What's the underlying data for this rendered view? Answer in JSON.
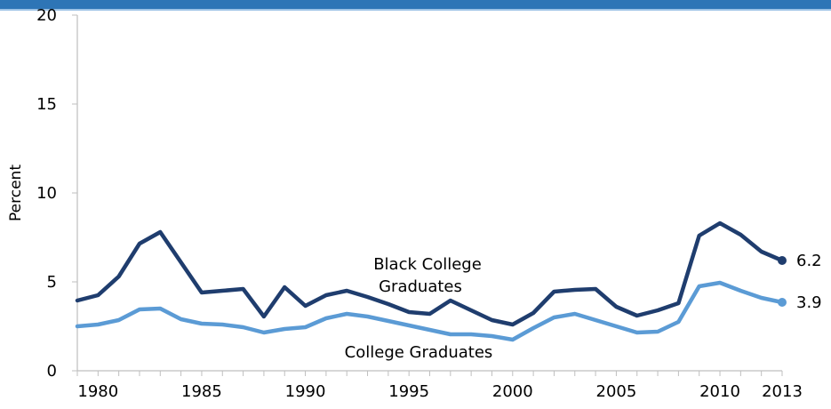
{
  "chart_data": {
    "type": "line",
    "title": "",
    "xlabel": "",
    "ylabel": "Percent",
    "ylim": [
      0,
      20
    ],
    "yticks": [
      "0",
      "5",
      "10",
      "15",
      "20"
    ],
    "xticks": [
      "1980",
      "1985",
      "1990",
      "1995",
      "2000",
      "2005",
      "2010",
      "2013"
    ],
    "x": [
      1979,
      1980,
      1981,
      1982,
      1983,
      1984,
      1985,
      1986,
      1987,
      1988,
      1989,
      1990,
      1991,
      1992,
      1993,
      1994,
      1995,
      1996,
      1997,
      1998,
      1999,
      2000,
      2001,
      2002,
      2003,
      2004,
      2005,
      2006,
      2007,
      2008,
      2009,
      2010,
      2011,
      2012,
      2013
    ],
    "series": [
      {
        "name": "Black College Graduates",
        "color": "#1f3d6e",
        "end_label": "6.2",
        "values": [
          3.95,
          4.25,
          5.3,
          7.15,
          7.8,
          6.1,
          4.4,
          4.5,
          4.6,
          3.05,
          4.7,
          3.65,
          4.25,
          4.5,
          4.15,
          3.75,
          3.3,
          3.2,
          3.95,
          3.4,
          2.85,
          2.6,
          3.25,
          4.45,
          4.55,
          4.6,
          3.6,
          3.1,
          3.4,
          3.8,
          7.6,
          8.3,
          7.65,
          6.7,
          6.2
        ]
      },
      {
        "name": "College Graduates",
        "color": "#5b9bd5",
        "end_label": "3.9",
        "values": [
          2.5,
          2.6,
          2.85,
          3.45,
          3.5,
          2.9,
          2.65,
          2.6,
          2.45,
          2.15,
          2.35,
          2.45,
          2.95,
          3.2,
          3.05,
          2.8,
          2.55,
          2.3,
          2.05,
          2.05,
          1.95,
          1.75,
          2.4,
          3.0,
          3.2,
          2.85,
          2.5,
          2.15,
          2.2,
          2.75,
          4.75,
          4.95,
          4.5,
          4.1,
          3.85
        ]
      }
    ],
    "annotations": [
      {
        "line1": "Black College",
        "line2": "Graduates"
      },
      {
        "line1": "College Graduates"
      }
    ],
    "grid": false,
    "legend": "none"
  }
}
